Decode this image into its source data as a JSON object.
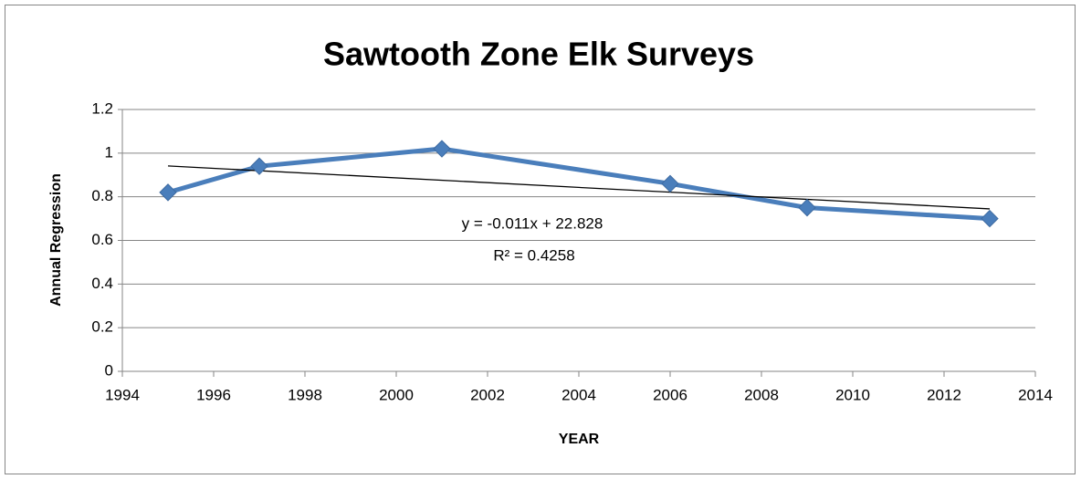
{
  "chart_data": {
    "type": "line",
    "title": "Sawtooth Zone Elk Surveys",
    "xlabel": "YEAR",
    "ylabel": "Annual Regression",
    "annotations": [
      "y = -0.011x + 22.828",
      "R² = 0.4258"
    ],
    "x": [
      1995,
      1997,
      2001,
      2006,
      2009,
      2013
    ],
    "series": [
      {
        "name": "Annual Regression",
        "color": "#4a7ebb",
        "values": [
          0.82,
          0.94,
          1.02,
          0.86,
          0.75,
          0.7
        ]
      }
    ],
    "trendline": "linear",
    "xlim": [
      1994,
      2014
    ],
    "xticks": [
      1994,
      1996,
      1998,
      2000,
      2002,
      2004,
      2006,
      2008,
      2010,
      2012,
      2014
    ],
    "ylim": [
      0,
      1.2
    ],
    "yticks": [
      0,
      0.2,
      0.4,
      0.6,
      0.8,
      1,
      1.2
    ],
    "grid": true
  }
}
